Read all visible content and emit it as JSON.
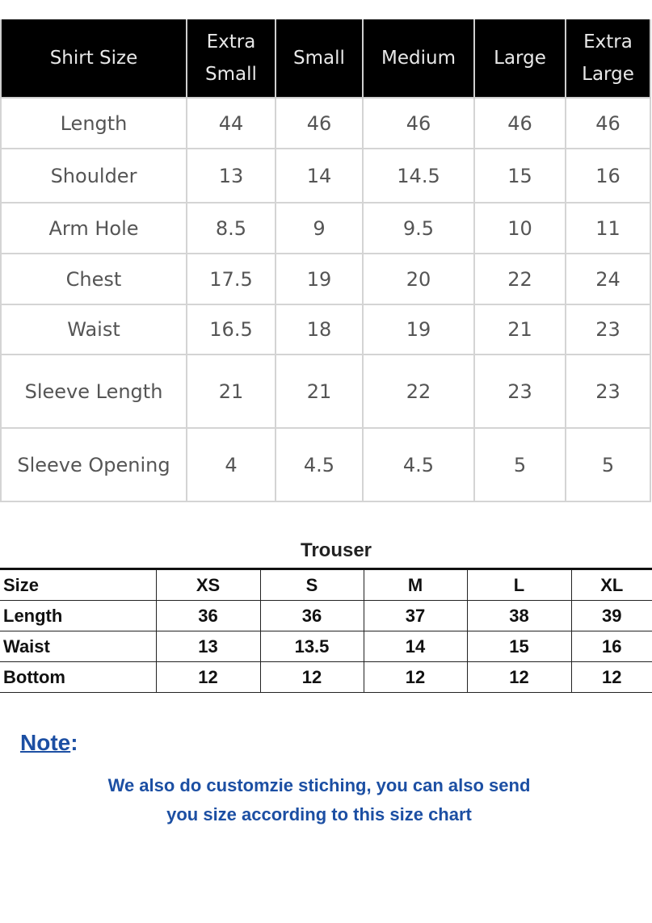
{
  "shirt_table": {
    "headers": [
      "Shirt Size",
      "Extra Small",
      "Small",
      "Medium",
      "Large",
      "Extra Large"
    ],
    "rows": [
      {
        "label": "Length",
        "values": [
          "44",
          "46",
          "46",
          "46",
          "46"
        ]
      },
      {
        "label": "Shoulder",
        "values": [
          "13",
          "14",
          "14.5",
          "15",
          "16"
        ]
      },
      {
        "label": "Arm Hole",
        "values": [
          "8.5",
          "9",
          "9.5",
          "10",
          "11"
        ]
      },
      {
        "label": "Chest",
        "values": [
          "17.5",
          "19",
          "20",
          "22",
          "24"
        ]
      },
      {
        "label": "Waist",
        "values": [
          "16.5",
          "18",
          "19",
          "21",
          "23"
        ]
      },
      {
        "label": "Sleeve Length",
        "values": [
          "21",
          "21",
          "22",
          "23",
          "23"
        ]
      },
      {
        "label": "Sleeve Opening",
        "values": [
          "4",
          "4.5",
          "4.5",
          "5",
          "5"
        ]
      }
    ]
  },
  "trouser_table": {
    "title": "Trouser",
    "headers": [
      "Size",
      "XS",
      "S",
      "M",
      "L",
      "XL"
    ],
    "rows": [
      {
        "label": "Length",
        "values": [
          "36",
          "36",
          "37",
          "38",
          "39"
        ]
      },
      {
        "label": "Waist",
        "values": [
          "13",
          "13.5",
          "14",
          "15",
          "16"
        ]
      },
      {
        "label": "Bottom",
        "values": [
          "12",
          "12",
          "12",
          "12",
          "12"
        ]
      }
    ]
  },
  "note": {
    "title": "Note",
    "colon": ":",
    "line1": "We also do customzie stiching, you can also send",
    "line2": "you size according to this size chart"
  },
  "colors": {
    "header_bg": "#000000",
    "note_text": "#1c4fa3"
  }
}
